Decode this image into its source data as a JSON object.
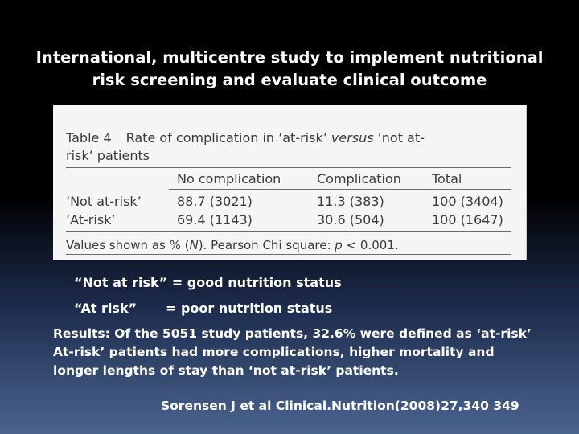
{
  "title": {
    "line1": "International, multicentre study to implement nutritional",
    "line2": "risk screening and evaluate clinical outcome"
  },
  "table": {
    "caption_label": "Table 4",
    "caption_pre": "Rate of complication in ’at-risk’ ",
    "caption_italic": "versus",
    "caption_post": " ’not at-",
    "caption_line2": "risk’ patients",
    "headers": [
      "No complication",
      "Complication",
      "Total"
    ],
    "rows": [
      {
        "label": "’Not at-risk’",
        "no_comp": "88.7 (3021)",
        "comp": "11.3 (383)",
        "total": "100 (3404)"
      },
      {
        "label": "’At-risk’",
        "no_comp": "69.4 (1143)",
        "comp": "30.6 (504)",
        "total": "100 (1647)"
      }
    ],
    "footer_pre": "Values shown as % (",
    "footer_n": "N",
    "footer_mid": "). Pearson Chi square: ",
    "footer_p": "p",
    "footer_post": " < 0.001."
  },
  "definitions": [
    {
      "term": "“Not at risk”",
      "meaning": "= good nutrition status"
    },
    {
      "term": "“At risk”",
      "meaning": "= poor nutrition status"
    }
  ],
  "results": "Results: Of the 5051 study patients, 32.6% were defined as ‘at-risk’ At-risk’ patients had more complications, higher mortality and longer lengths of stay than ‘not at-risk’ patients.",
  "citation": "Sorensen J et al  Clinical.Nutrition(2008)27,340 349"
}
